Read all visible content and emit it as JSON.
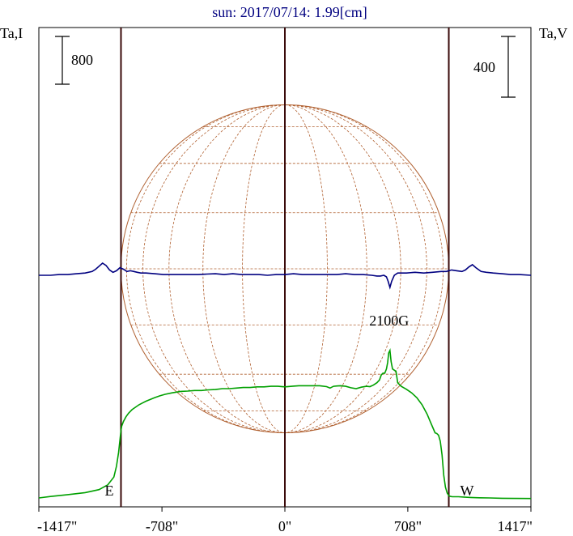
{
  "chart_data": {
    "type": "line",
    "title": "sun: 2017/07/14: 1.99[cm]",
    "left_axis_label": "Ta,I",
    "right_axis_label": "Ta,V",
    "left_scale_label": "800",
    "right_scale_label": "400",
    "x_ticks": [
      {
        "value": -1417,
        "label": "-1417\""
      },
      {
        "value": -708,
        "label": "-708\""
      },
      {
        "value": 0,
        "label": "0\""
      },
      {
        "value": 708,
        "label": "708\""
      },
      {
        "value": 1417,
        "label": "1417\""
      }
    ],
    "xlim": [
      -1417,
      1417
    ],
    "limb_markers": [
      {
        "value": -944,
        "label": "E"
      },
      {
        "value": 944,
        "label": "W"
      }
    ],
    "center_line": 0,
    "disk_radius": 944,
    "grid": true,
    "annotation": {
      "text": "2100G",
      "x": 600
    },
    "colors": {
      "intensity": "#00a000",
      "polarization": "#000080",
      "disk": "#b06030",
      "frame": "#000000",
      "vlines": "#3a0a0a",
      "title": "#000080"
    },
    "series": [
      {
        "id": "intensity",
        "axis": "left",
        "x": [
          -1417,
          -1350,
          -1250,
          -1150,
          -1070,
          -1020,
          -985,
          -970,
          -958,
          -950,
          -945,
          -940,
          -930,
          -915,
          -900,
          -880,
          -860,
          -840,
          -820,
          -800,
          -780,
          -750,
          -720,
          -690,
          -650,
          -600,
          -560,
          -520,
          -480,
          -440,
          -400,
          -360,
          -320,
          -280,
          -240,
          -200,
          -160,
          -120,
          -80,
          -40,
          0,
          40,
          80,
          120,
          160,
          200,
          240,
          260,
          280,
          300,
          320,
          350,
          380,
          410,
          440,
          470,
          490,
          510,
          530,
          545,
          555,
          565,
          575,
          585,
          592,
          598,
          605,
          612,
          620,
          630,
          640,
          650,
          670,
          700,
          730,
          760,
          790,
          820,
          840,
          855,
          865,
          875,
          885,
          895,
          905,
          915,
          925,
          935,
          945,
          955,
          965,
          980,
          1000,
          1030,
          1070,
          1120,
          1180,
          1250,
          1330,
          1417
        ],
        "y": [
          0,
          25,
          55,
          90,
          140,
          220,
          350,
          530,
          760,
          970,
          1110,
          1200,
          1280,
          1360,
          1420,
          1480,
          1520,
          1560,
          1590,
          1620,
          1645,
          1680,
          1710,
          1735,
          1760,
          1785,
          1790,
          1800,
          1800,
          1810,
          1815,
          1830,
          1830,
          1840,
          1850,
          1850,
          1860,
          1860,
          1870,
          1870,
          1860,
          1870,
          1880,
          1880,
          1880,
          1880,
          1865,
          1840,
          1870,
          1875,
          1880,
          1870,
          1845,
          1830,
          1855,
          1870,
          1865,
          1890,
          1930,
          1975,
          2060,
          2090,
          2090,
          2160,
          2270,
          2430,
          2470,
          2280,
          2160,
          2140,
          2120,
          1930,
          1870,
          1820,
          1760,
          1680,
          1560,
          1400,
          1260,
          1160,
          1090,
          1080,
          1050,
          950,
          720,
          380,
          180,
          80,
          35,
          25,
          20,
          20,
          20,
          15,
          8,
          3,
          0,
          -5,
          -8,
          -10
        ]
      },
      {
        "id": "polarization",
        "axis": "right",
        "x": [
          -1417,
          -1350,
          -1300,
          -1250,
          -1200,
          -1150,
          -1110,
          -1090,
          -1070,
          -1050,
          -1030,
          -1010,
          -990,
          -970,
          -950,
          -930,
          -910,
          -890,
          -870,
          -850,
          -830,
          -800,
          -750,
          -700,
          -650,
          -600,
          -550,
          -500,
          -450,
          -400,
          -350,
          -300,
          -250,
          -200,
          -150,
          -100,
          -50,
          0,
          50,
          100,
          150,
          200,
          250,
          300,
          350,
          400,
          450,
          500,
          530,
          550,
          570,
          585,
          595,
          605,
          615,
          630,
          650,
          700,
          750,
          800,
          850,
          900,
          930,
          960,
          990,
          1020,
          1040,
          1060,
          1080,
          1100,
          1130,
          1160,
          1200,
          1250,
          1300,
          1350,
          1417
        ],
        "y": [
          0,
          0,
          5,
          5,
          10,
          15,
          25,
          40,
          60,
          80,
          65,
          35,
          20,
          30,
          50,
          40,
          25,
          30,
          25,
          20,
          15,
          15,
          10,
          5,
          5,
          5,
          5,
          5,
          8,
          10,
          5,
          10,
          5,
          5,
          5,
          0,
          5,
          5,
          10,
          5,
          5,
          5,
          5,
          5,
          10,
          5,
          5,
          0,
          -5,
          -5,
          0,
          -10,
          -40,
          -80,
          -40,
          0,
          15,
          15,
          20,
          15,
          20,
          25,
          25,
          35,
          30,
          25,
          35,
          55,
          70,
          50,
          25,
          20,
          15,
          10,
          5,
          5,
          0
        ]
      }
    ]
  }
}
